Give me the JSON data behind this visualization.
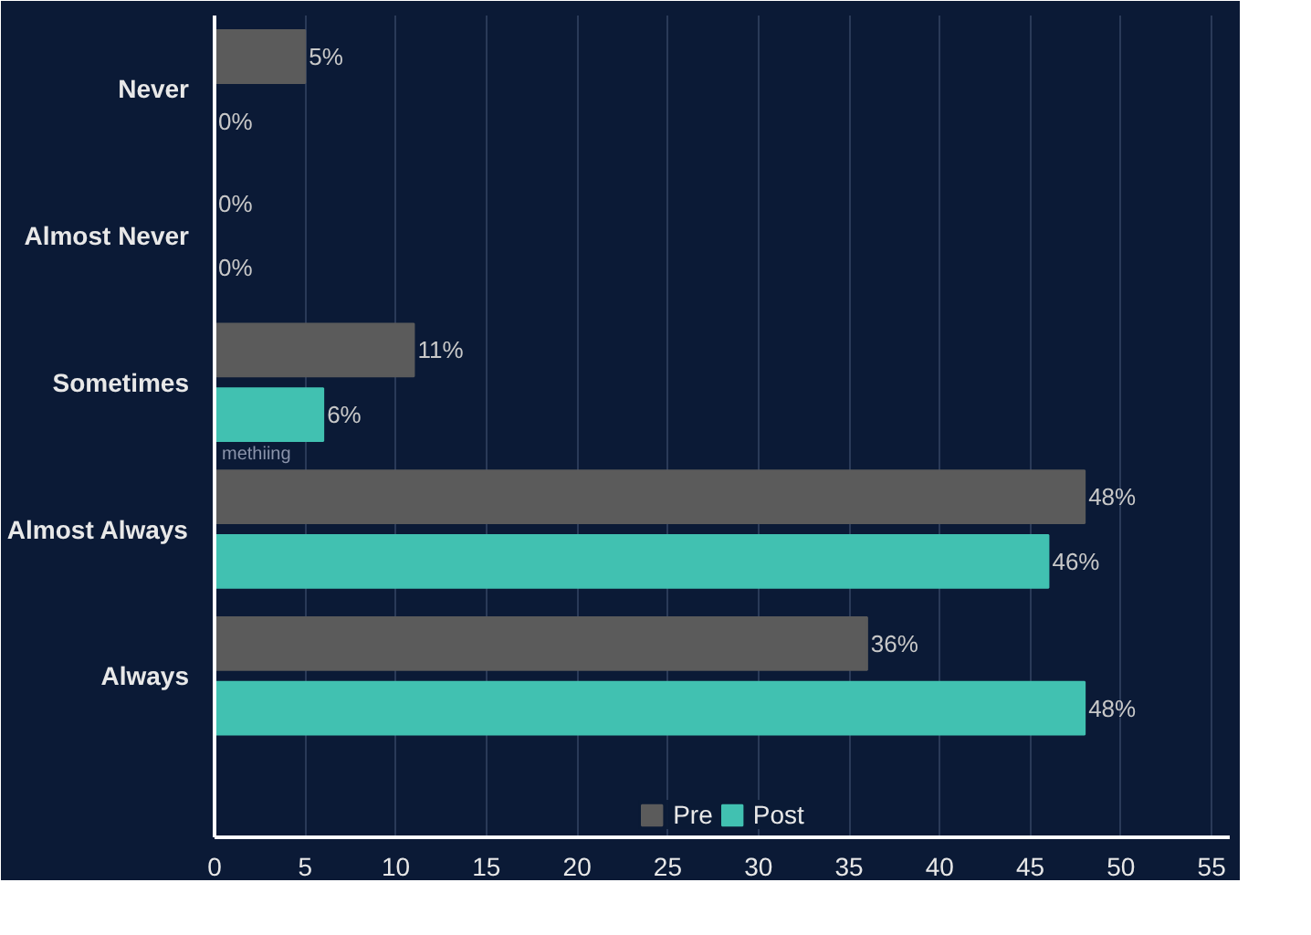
{
  "chart_data": {
    "type": "bar",
    "orientation": "horizontal",
    "categories": [
      "Never",
      "Almost Never",
      "Sometimes",
      "Almost Always",
      "Always"
    ],
    "series": [
      {
        "name": "Pre",
        "color": "#5b5b5b",
        "values": [
          5,
          0,
          11,
          48,
          36
        ],
        "value_labels": [
          "5%",
          "0%",
          "11%",
          "48%",
          "36%"
        ]
      },
      {
        "name": "Post",
        "color": "#41c1b1",
        "values": [
          0,
          0,
          6,
          46,
          48
        ],
        "value_labels": [
          "0%",
          "0%",
          "6%",
          "46%",
          "48%"
        ]
      }
    ],
    "xlim": [
      0,
      56
    ],
    "xticks": [
      0,
      5,
      10,
      15,
      20,
      25,
      30,
      35,
      40,
      45,
      50,
      55
    ],
    "grid": "x",
    "legend": "bottom",
    "annotations": [
      "methiing"
    ]
  }
}
